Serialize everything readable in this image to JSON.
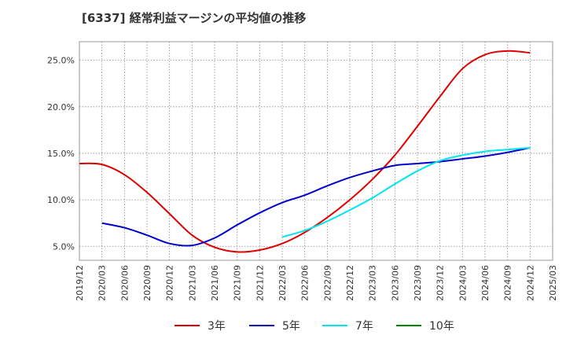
{
  "chart_data": {
    "type": "line",
    "title": "[6337]  経常利益マージンの平均値の推移",
    "xlabel": "",
    "ylabel": "",
    "ylim": [
      3.5,
      27.0
    ],
    "yticks": [
      5.0,
      10.0,
      15.0,
      20.0,
      25.0
    ],
    "ytick_labels": [
      "5.0%",
      "10.0%",
      "15.0%",
      "20.0%",
      "25.0%"
    ],
    "xlim": [
      "2019-12",
      "2025-03"
    ],
    "xtick_labels": [
      "2019/12",
      "2020/03",
      "2020/06",
      "2020/09",
      "2020/12",
      "2021/03",
      "2021/06",
      "2021/09",
      "2021/12",
      "2022/03",
      "2022/06",
      "2022/09",
      "2022/12",
      "2023/03",
      "2023/06",
      "2023/09",
      "2023/12",
      "2024/03",
      "2024/06",
      "2024/09",
      "2024/12",
      "2025/03"
    ],
    "grid": true,
    "legend_position": "bottom",
    "series": [
      {
        "name": "3年",
        "color": "#dd0000",
        "x": [
          "2019-12",
          "2020-03",
          "2020-06",
          "2020-09",
          "2020-12",
          "2021-03",
          "2021-06",
          "2021-09",
          "2021-12",
          "2022-03",
          "2022-06",
          "2022-09",
          "2022-12",
          "2023-03",
          "2023-06",
          "2023-09",
          "2023-12",
          "2024-03",
          "2024-06",
          "2024-09",
          "2024-12"
        ],
        "values": [
          13.9,
          13.8,
          12.7,
          10.8,
          8.5,
          6.2,
          4.9,
          4.4,
          4.6,
          5.3,
          6.5,
          8.1,
          10.0,
          12.2,
          14.8,
          17.9,
          21.1,
          24.1,
          25.6,
          26.0,
          25.8
        ]
      },
      {
        "name": "5年",
        "color": "#0000cc",
        "x": [
          "2020-03",
          "2020-06",
          "2020-09",
          "2020-12",
          "2021-03",
          "2021-06",
          "2021-09",
          "2021-12",
          "2022-03",
          "2022-06",
          "2022-09",
          "2022-12",
          "2023-03",
          "2023-06",
          "2023-09",
          "2023-12",
          "2024-03",
          "2024-06",
          "2024-09",
          "2024-12"
        ],
        "values": [
          7.5,
          7.0,
          6.2,
          5.3,
          5.1,
          5.9,
          7.3,
          8.6,
          9.7,
          10.5,
          11.5,
          12.4,
          13.1,
          13.7,
          13.9,
          14.1,
          14.4,
          14.7,
          15.1,
          15.6
        ]
      },
      {
        "name": "7年",
        "color": "#00e5ee",
        "x": [
          "2022-03",
          "2022-06",
          "2022-09",
          "2022-12",
          "2023-03",
          "2023-06",
          "2023-09",
          "2023-12",
          "2024-03",
          "2024-06",
          "2024-09",
          "2024-12"
        ],
        "values": [
          6.0,
          6.7,
          7.7,
          8.9,
          10.2,
          11.7,
          13.1,
          14.2,
          14.8,
          15.2,
          15.4,
          15.6
        ]
      },
      {
        "name": "10年",
        "color": "#008800",
        "x": [],
        "values": []
      }
    ]
  }
}
